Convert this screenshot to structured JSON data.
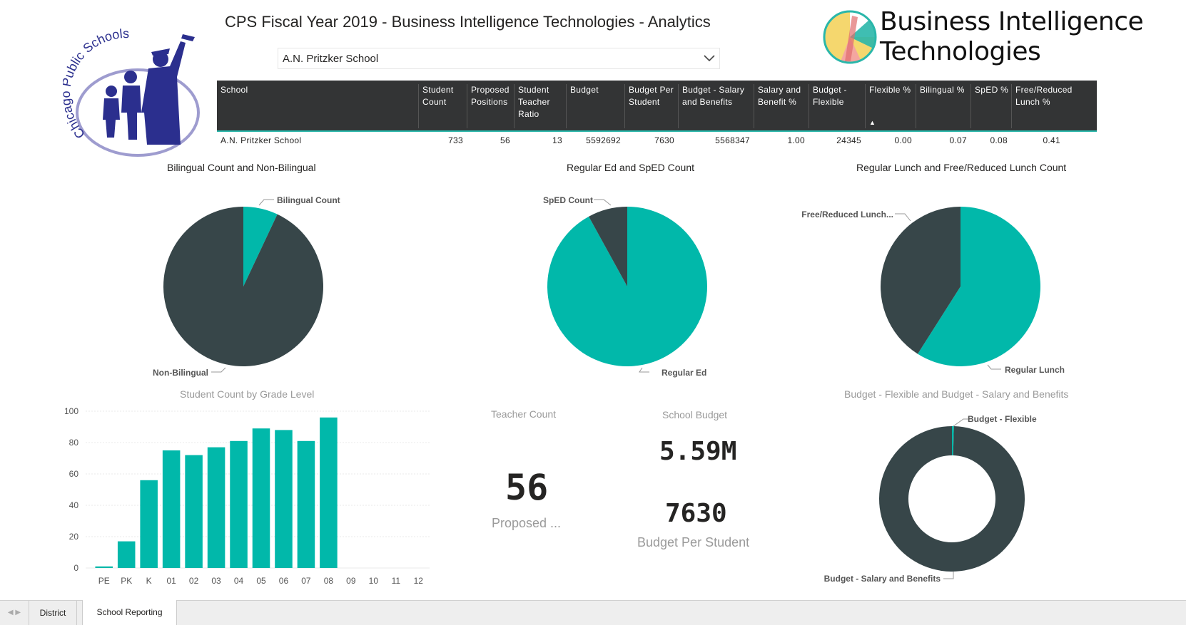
{
  "header": {
    "title": "CPS Fiscal Year 2019 - Business Intelligence Technologies - Analytics",
    "cps_logo_text": "Chicago Public Schools",
    "bi_logo_line1": "Business Intelligence",
    "bi_logo_line2": "Technologies"
  },
  "filter": {
    "selected": "A.N. Pritzker School"
  },
  "table": {
    "columns": [
      "School",
      "Student Count",
      "Proposed Positions",
      "Student Teacher Ratio",
      "Budget",
      "Budget Per Student",
      "Budget - Salary and Benefits",
      "Salary and Benefit %",
      "Budget - Flexible",
      "Flexible %",
      "Bilingual %",
      "SpED %",
      "Free/Reduced Lunch %"
    ],
    "rows": [
      [
        "A.N. Pritzker School",
        "733",
        "56",
        "13",
        "5592692",
        "7630",
        "5568347",
        "1.00",
        "24345",
        "0.00",
        "0.07",
        "0.08",
        "0.41"
      ]
    ],
    "sort_column": "Flexible %",
    "sort_direction": "ascending"
  },
  "pies": [
    {
      "title": "Bilingual Count and Non-Bilingual",
      "slices": [
        {
          "label": "Bilingual Count",
          "value": 0.07,
          "color": "#01b8aa"
        },
        {
          "label": "Non-Bilingual",
          "value": 0.93,
          "color": "#374649"
        }
      ]
    },
    {
      "title": "Regular Ed and SpED Count",
      "slices": [
        {
          "label": "Regular Ed",
          "value": 0.92,
          "color": "#01b8aa"
        },
        {
          "label": "SpED Count",
          "value": 0.08,
          "color": "#374649"
        }
      ]
    },
    {
      "title": "Regular Lunch and Free/Reduced Lunch Count",
      "slices": [
        {
          "label": "Regular Lunch",
          "value": 0.59,
          "color": "#01b8aa"
        },
        {
          "label": "Free/Reduced Lunch...",
          "value": 0.41,
          "color": "#374649"
        }
      ]
    }
  ],
  "chart_data": [
    {
      "type": "bar",
      "title": "Student Count by Grade Level",
      "categories": [
        "PE",
        "PK",
        "K",
        "01",
        "02",
        "03",
        "04",
        "05",
        "06",
        "07",
        "08",
        "09",
        "10",
        "11",
        "12"
      ],
      "values": [
        1,
        17,
        56,
        75,
        72,
        77,
        81,
        89,
        88,
        81,
        96,
        0,
        0,
        0,
        0
      ],
      "ylim": [
        0,
        100
      ],
      "yticks": [
        0,
        20,
        40,
        60,
        80,
        100
      ],
      "color": "#01b8aa"
    },
    {
      "type": "pie",
      "title": "Budget - Flexible and Budget - Salary and Benefits",
      "donut": true,
      "labels": [
        "Budget - Flexible",
        "Budget - Salary and Benefits"
      ],
      "values": [
        24345,
        5568347
      ],
      "colors": [
        "#01b8aa",
        "#374649"
      ]
    }
  ],
  "cards": {
    "teacher_count_title": "Teacher Count",
    "teacher_count_value": "56",
    "teacher_count_sub": "Proposed ...",
    "school_budget_title": "School Budget",
    "school_budget_value": "5.59M",
    "budget_per_student_value": "7630",
    "budget_per_student_label": "Budget Per Student"
  },
  "tabs": [
    "District",
    "School Reporting"
  ],
  "active_tab": "School Reporting"
}
